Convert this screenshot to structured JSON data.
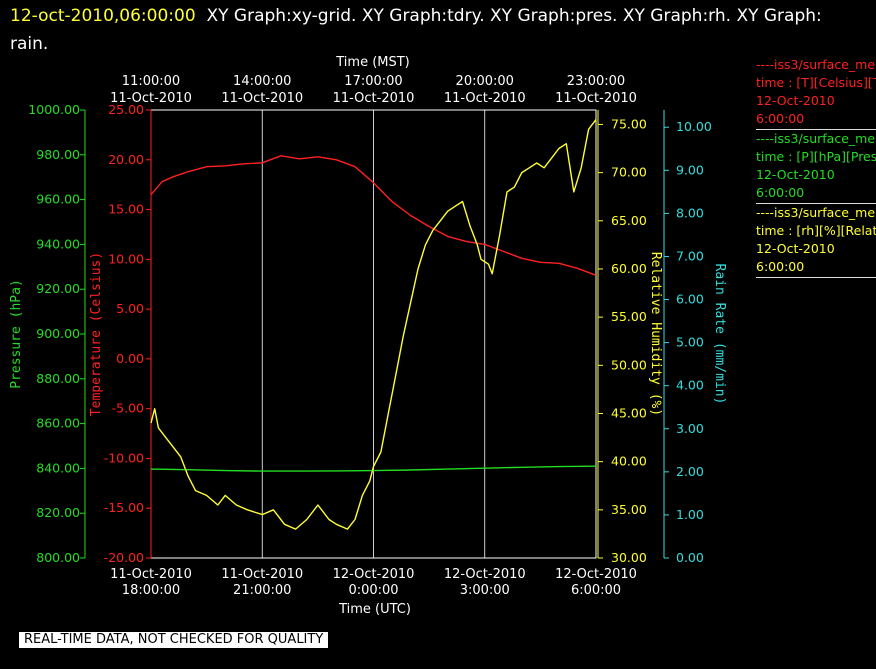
{
  "header": {
    "timestamp": "12-oct-2010,06:00:00",
    "title": "XY Graph:xy-grid.  XY Graph:tdry.  XY Graph:pres.  XY Graph:rh.  XY Graph:",
    "title_wrap": "rain."
  },
  "warning": "REAL-TIME DATA, NOT CHECKED FOR QUALITY",
  "legend": [
    {
      "line1": "----iss3/surface_me",
      "line2": "time : [T][Celsius][T",
      "line3": "12-Oct-2010",
      "line4": "6:00:00",
      "color": "#ff2020"
    },
    {
      "line1": "----iss3/surface_me",
      "line2": "time : [P][hPa][Pres",
      "line3": "12-Oct-2010",
      "line4": "6:00:00",
      "color": "#22dd22"
    },
    {
      "line1": "----iss3/surface_me",
      "line2": "time : [rh][%][Relati",
      "line3": "12-Oct-2010",
      "line4": "6:00:00",
      "color": "#ffff33"
    }
  ],
  "chart_data": {
    "type": "line",
    "grid": true,
    "top_axis": {
      "label": "Time (MST)",
      "ticks": [
        {
          "time": "11:00:00",
          "date": "11-Oct-2010",
          "hours": 0
        },
        {
          "time": "14:00:00",
          "date": "11-Oct-2010",
          "hours": 3
        },
        {
          "time": "17:00:00",
          "date": "11-Oct-2010",
          "hours": 6
        },
        {
          "time": "20:00:00",
          "date": "11-Oct-2010",
          "hours": 9
        },
        {
          "time": "23:00:00",
          "date": "11-Oct-2010",
          "hours": 12
        }
      ]
    },
    "bottom_axis": {
      "label": "Time (UTC)",
      "range_utc": [
        "11-Oct-2010 18:00:00",
        "12-Oct-2010 6:00:00"
      ],
      "ticks": [
        {
          "date": "11-Oct-2010",
          "time": "18:00:00",
          "hours": 0
        },
        {
          "date": "11-Oct-2010",
          "time": "21:00:00",
          "hours": 3
        },
        {
          "date": "12-Oct-2010",
          "time": "0:00:00",
          "hours": 6
        },
        {
          "date": "12-Oct-2010",
          "time": "3:00:00",
          "hours": 9
        },
        {
          "date": "12-Oct-2010",
          "time": "6:00:00",
          "hours": 12
        }
      ]
    },
    "y_axes": [
      {
        "id": "pres",
        "label": "Pressure (hPa)",
        "color": "#22dd22",
        "side": "left",
        "min": 800,
        "max": 1000,
        "ticks": [
          "800.00",
          "820.00",
          "840.00",
          "860.00",
          "880.00",
          "900.00",
          "920.00",
          "940.00",
          "960.00",
          "980.00",
          "1000.00"
        ]
      },
      {
        "id": "temp",
        "label": "Temperature (Celsius)",
        "color": "#ff2020",
        "side": "left",
        "min": -20,
        "max": 25,
        "ticks": [
          "-20.00",
          "-15.00",
          "-10.00",
          "-5.00",
          "0.00",
          "5.00",
          "10.00",
          "15.00",
          "20.00",
          "25.00"
        ]
      },
      {
        "id": "rh",
        "label": "Relative Humidity (%)",
        "color": "#ffff33",
        "side": "right",
        "min": 30,
        "max": 76.5,
        "ticks": [
          "30.00",
          "35.00",
          "40.00",
          "45.00",
          "50.00",
          "55.00",
          "60.00",
          "65.00",
          "70.00",
          "75.00"
        ]
      },
      {
        "id": "rain",
        "label": "Rain Rate (mm/min)",
        "color": "#33dddd",
        "side": "right",
        "min": 0,
        "max": 10.4,
        "ticks": [
          "0.00",
          "1.00",
          "2.00",
          "3.00",
          "4.00",
          "5.00",
          "6.00",
          "7.00",
          "8.00",
          "9.00",
          "10.00"
        ]
      }
    ],
    "series": [
      {
        "axis": "temp",
        "color": "#ff2020",
        "x": [
          0,
          0.3,
          0.6,
          1.0,
          1.5,
          2.0,
          2.5,
          3.0,
          3.5,
          4.0,
          4.5,
          5.0,
          5.5,
          6.0,
          6.5,
          7.0,
          7.5,
          8.0,
          8.5,
          9.0,
          9.5,
          10.0,
          10.5,
          11.0,
          11.5,
          12.0
        ],
        "y": [
          16.5,
          17.8,
          18.3,
          18.8,
          19.3,
          19.4,
          19.6,
          19.7,
          20.4,
          20.1,
          20.3,
          20.0,
          19.3,
          17.7,
          15.8,
          14.4,
          13.3,
          12.3,
          11.8,
          11.5,
          10.8,
          10.1,
          9.7,
          9.6,
          9.1,
          8.4
        ]
      },
      {
        "axis": "pres",
        "color": "#22dd22",
        "x": [
          0,
          1,
          2,
          3,
          4,
          5,
          6,
          7,
          8,
          9,
          10,
          11,
          12
        ],
        "y": [
          839.7,
          839.4,
          839.0,
          838.8,
          838.8,
          838.9,
          839.0,
          839.3,
          839.7,
          840.1,
          840.5,
          840.8,
          841.0
        ],
        "legend_series": true
      },
      {
        "axis": "rh",
        "color": "#ffff33",
        "x": [
          0,
          0.1,
          0.2,
          0.4,
          0.6,
          0.8,
          1.0,
          1.2,
          1.5,
          1.8,
          2.0,
          2.3,
          2.6,
          3.0,
          3.3,
          3.6,
          3.9,
          4.2,
          4.5,
          4.8,
          5.0,
          5.3,
          5.5,
          5.7,
          5.9,
          6.0,
          6.2,
          6.4,
          6.6,
          6.8,
          7.0,
          7.2,
          7.4,
          7.6,
          7.8,
          8.0,
          8.2,
          8.4,
          8.6,
          8.8,
          8.9,
          9.1,
          9.2,
          9.4,
          9.6,
          9.8,
          10.0,
          10.2,
          10.4,
          10.6,
          10.8,
          11.0,
          11.2,
          11.4,
          11.6,
          11.8,
          12.0
        ],
        "y": [
          44.0,
          45.5,
          43.5,
          42.5,
          41.5,
          40.5,
          38.5,
          37.0,
          36.5,
          35.5,
          36.5,
          35.5,
          35.0,
          34.5,
          35.0,
          33.5,
          33.0,
          34.0,
          35.5,
          34.0,
          33.5,
          33.0,
          34.0,
          36.5,
          38.0,
          39.5,
          41.0,
          45.0,
          49.0,
          53.0,
          56.5,
          60.0,
          62.5,
          64.0,
          65.0,
          66.0,
          66.5,
          67.0,
          64.5,
          62.5,
          61.0,
          60.5,
          59.5,
          63.5,
          68.0,
          68.5,
          70.0,
          70.5,
          71.0,
          70.5,
          71.5,
          72.5,
          73.0,
          68.0,
          70.5,
          74.5,
          75.5
        ]
      }
    ]
  }
}
